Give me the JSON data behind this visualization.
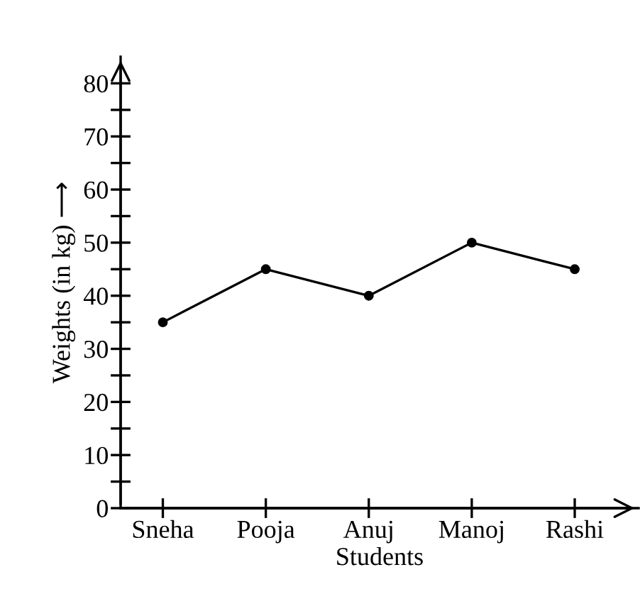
{
  "chart_data": {
    "type": "line",
    "xlabel": "Students",
    "ylabel": "Weights (in kg) ⟶",
    "categories": [
      "Sneha",
      "Pooja",
      "Anuj",
      "Manoj",
      "Rashi"
    ],
    "series": [
      {
        "color": "#000000",
        "values": [
          35,
          45,
          40,
          50,
          45
        ]
      }
    ],
    "ylim": [
      0,
      85
    ],
    "yticks": [
      0,
      {
        "value": 5,
        "label": null
      },
      10,
      {
        "value": 15,
        "label": null
      },
      20,
      {
        "value": 25,
        "label": null
      },
      30,
      {
        "value": 35,
        "label": null
      },
      40,
      {
        "value": 45,
        "label": null
      },
      50,
      {
        "value": 55,
        "label": null
      },
      60,
      {
        "value": 65,
        "label": null
      },
      70,
      {
        "value": 75,
        "label": null
      },
      80
    ],
    "grid": false,
    "legend": false,
    "marker": "circle",
    "line_style": "solid"
  }
}
